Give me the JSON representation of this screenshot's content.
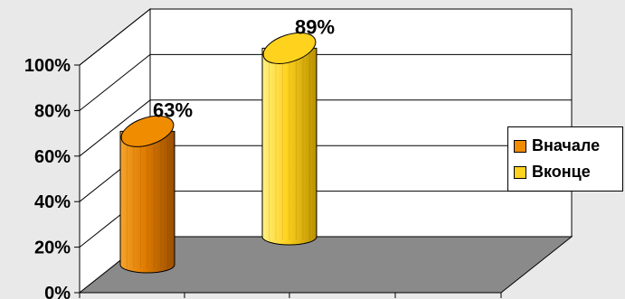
{
  "chart_data": {
    "type": "bar",
    "title": "",
    "xlabel": "",
    "ylabel": "",
    "ylim": [
      0,
      100
    ],
    "y_ticks": [
      "0%",
      "20%",
      "40%",
      "60%",
      "80%",
      "100%"
    ],
    "series": [
      {
        "name": "Вначале",
        "values": [
          63
        ],
        "label": "63%",
        "color": "#f08c00"
      },
      {
        "name": "Вконце",
        "values": [
          89
        ],
        "label": "89%",
        "color": "#ffd21e"
      }
    ],
    "legend_position": "right",
    "grid": true,
    "style": "3d-cylinder"
  },
  "colors": {
    "floor": "#8a8a8a",
    "walls": "#ffffff",
    "background": "#e9e9e9"
  }
}
